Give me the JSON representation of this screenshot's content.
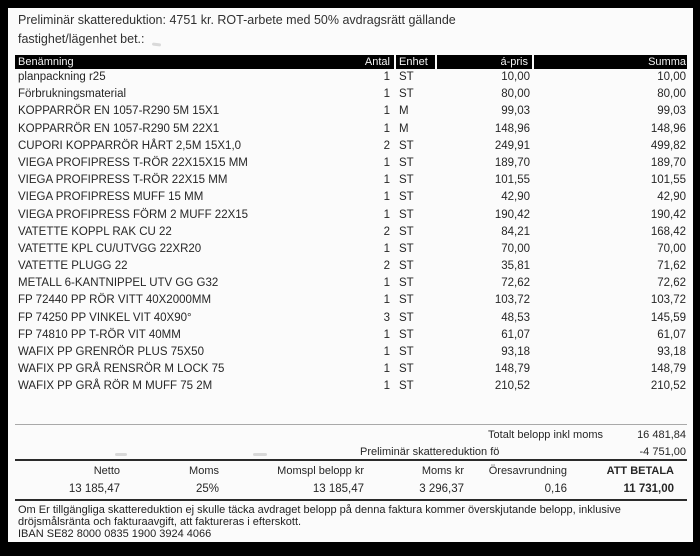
{
  "intro": {
    "line1": "Preliminär skattereduktion: 4751 kr. ROT-arbete med 50% avdragsrätt gällande",
    "line2": "fastighet/lägenhet bet.:"
  },
  "table": {
    "columns": {
      "name": "Benämning",
      "antal": "Antal",
      "enhet": "Enhet",
      "apris": "á-pris",
      "summa": "Summa"
    },
    "rows": [
      {
        "name": "planpackning r25",
        "antal": "1",
        "enhet": "ST",
        "apris": "10,00",
        "summa": "10,00"
      },
      {
        "name": "Förbrukningsmaterial",
        "antal": "1",
        "enhet": "ST",
        "apris": "80,00",
        "summa": "80,00"
      },
      {
        "name": "KOPPARRÖR EN 1057-R290 5M 15X1",
        "antal": "1",
        "enhet": "M",
        "apris": "99,03",
        "summa": "99,03"
      },
      {
        "name": "KOPPARRÖR EN 1057-R290 5M 22X1",
        "antal": "1",
        "enhet": "M",
        "apris": "148,96",
        "summa": "148,96"
      },
      {
        "name": "CUPORI KOPPARRÖR HÅRT  2,5M 15X1,0",
        "antal": "2",
        "enhet": "ST",
        "apris": "249,91",
        "summa": "499,82"
      },
      {
        "name": "VIEGA PROFIPRESS T-RÖR 22X15X15 MM",
        "antal": "1",
        "enhet": "ST",
        "apris": "189,70",
        "summa": "189,70"
      },
      {
        "name": "VIEGA PROFIPRESS T-RÖR 22X15 MM",
        "antal": "1",
        "enhet": "ST",
        "apris": "101,55",
        "summa": "101,55"
      },
      {
        "name": "VIEGA PROFIPRESS MUFF 15 MM",
        "antal": "1",
        "enhet": "ST",
        "apris": "42,90",
        "summa": "42,90"
      },
      {
        "name": "VIEGA PROFIPRESS FÖRM 2 MUFF 22X15",
        "antal": "1",
        "enhet": "ST",
        "apris": "190,42",
        "summa": "190,42"
      },
      {
        "name": "VATETTE KOPPL RAK CU 22",
        "antal": "2",
        "enhet": "ST",
        "apris": "84,21",
        "summa": "168,42"
      },
      {
        "name": "VATETTE KPL CU/UTVGG 22XR20",
        "antal": "1",
        "enhet": "ST",
        "apris": "70,00",
        "summa": "70,00"
      },
      {
        "name": "VATETTE PLUGG 22",
        "antal": "2",
        "enhet": "ST",
        "apris": "35,81",
        "summa": "71,62"
      },
      {
        "name": "METALL 6-KANTNIPPEL UTV GG G32",
        "antal": "1",
        "enhet": "ST",
        "apris": "72,62",
        "summa": "72,62"
      },
      {
        "name": "FP 72440 PP RÖR VITT 40X2000MM",
        "antal": "1",
        "enhet": "ST",
        "apris": "103,72",
        "summa": "103,72"
      },
      {
        "name": "FP 74250 PP VINKEL VIT 40X90°",
        "antal": "3",
        "enhet": "ST",
        "apris": "48,53",
        "summa": "145,59"
      },
      {
        "name": "FP 74810 PP T-RÖR VIT 40MM",
        "antal": "1",
        "enhet": "ST",
        "apris": "61,07",
        "summa": "61,07"
      },
      {
        "name": "WAFIX PP GRENRÖR PLUS 75X50",
        "antal": "1",
        "enhet": "ST",
        "apris": "93,18",
        "summa": "93,18"
      },
      {
        "name": "WAFIX PP GRÅ RENSRÖR M LOCK 75",
        "antal": "1",
        "enhet": "ST",
        "apris": "148,79",
        "summa": "148,79"
      },
      {
        "name": "WAFIX PP GRÅ RÖR M MUFF 75 2M",
        "antal": "1",
        "enhet": "ST",
        "apris": "210,52",
        "summa": "210,52"
      }
    ]
  },
  "totals": {
    "total_label": "Totalt belopp inkl moms",
    "total_value": "16 481,84",
    "deduction_label": "Preliminär skattereduktion fö",
    "deduction_value": "-4 751,00"
  },
  "summary": {
    "labels": [
      "Netto",
      "Moms",
      "Momspl belopp kr",
      "Moms kr",
      "Öresavrundning",
      "ATT BETALA"
    ],
    "values": [
      "13 185,47",
      "25%",
      "13 185,47",
      "3 296,37",
      "0,16",
      "11 731,00"
    ]
  },
  "footer": {
    "line1": "Om Er tillgängliga skattereduktion ej skulle täcka avdraget belopp på denna faktura kommer överskjutande belopp, inklusive",
    "line2": "dröjsmålsränta och fakturaavgift, att faktureras i efterskott.",
    "line3": "IBAN SE82 8000 0835 1900 3924 4066"
  }
}
